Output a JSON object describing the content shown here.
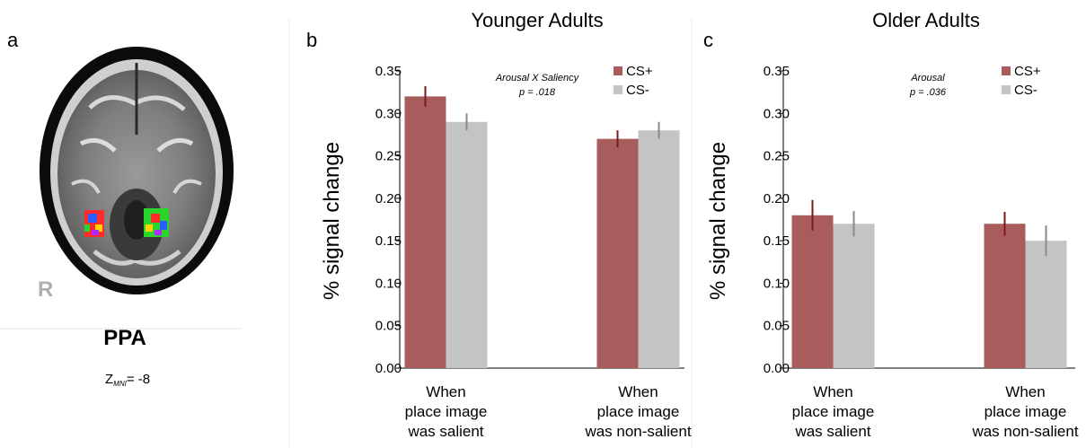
{
  "panel_a": {
    "letter": "a",
    "side_marker": "R",
    "region": "PPA",
    "z_main": "Z",
    "z_sub": "MNI",
    "z_value": "= -8"
  },
  "legend": {
    "pos_label": "CS+",
    "neg_label": "CS-"
  },
  "colors": {
    "cs_plus": "#a85c5c",
    "cs_minus": "#c4c4c4",
    "err_plus": "#7a1a1a",
    "err_minus": "#8a8a8a"
  },
  "chart_data": [
    {
      "panel": "b",
      "type": "bar",
      "title": "Younger Adults",
      "ylabel": "% signal change",
      "ylim": [
        0,
        0.35
      ],
      "yticks": [
        "0.00",
        "0.05",
        "0.10",
        "0.15",
        "0.20",
        "0.25",
        "0.30",
        "0.35"
      ],
      "categories": [
        [
          "When",
          "place image",
          "was salient"
        ],
        [
          "When",
          "place image",
          "was non-salient"
        ]
      ],
      "series": [
        {
          "name": "CS+",
          "values": [
            0.32,
            0.27
          ],
          "errors": [
            0.012,
            0.01
          ]
        },
        {
          "name": "CS-",
          "values": [
            0.29,
            0.28
          ],
          "errors": [
            0.01,
            0.01
          ]
        }
      ],
      "annotation": [
        "Arousal X Saliency",
        "p = .018"
      ]
    },
    {
      "panel": "c",
      "type": "bar",
      "title": "Older Adults",
      "ylabel": "% signal change",
      "ylim": [
        0,
        0.35
      ],
      "yticks": [
        "0.00",
        "0.05",
        "0.10",
        "0.15",
        "0.20",
        "0.25",
        "0.30",
        "0.35"
      ],
      "categories": [
        [
          "When",
          "place image",
          "was salient"
        ],
        [
          "When",
          "place image",
          "was non-salient"
        ]
      ],
      "series": [
        {
          "name": "CS+",
          "values": [
            0.18,
            0.17
          ],
          "errors": [
            0.018,
            0.014
          ]
        },
        {
          "name": "CS-",
          "values": [
            0.17,
            0.15
          ],
          "errors": [
            0.015,
            0.018
          ]
        }
      ],
      "annotation": [
        "Arousal",
        "p = .036"
      ]
    }
  ]
}
